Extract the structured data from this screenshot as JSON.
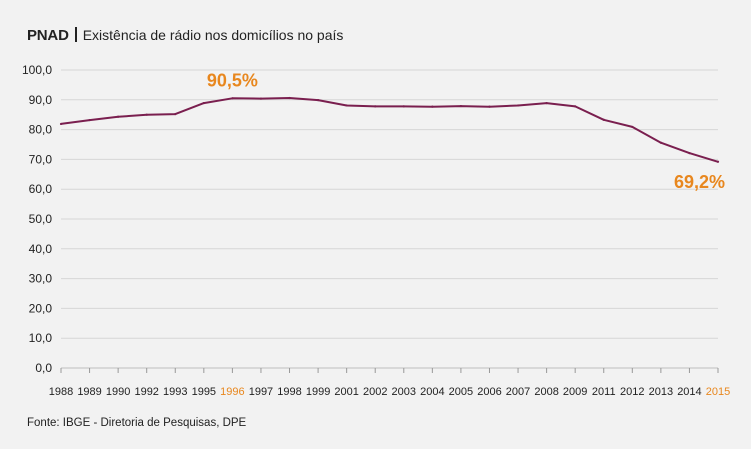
{
  "header": {
    "title": "PNAD",
    "subtitle": "Existência de rádio nos domicílios no país"
  },
  "footer": {
    "source": "Fonte: IBGE - Diretoria de Pesquisas, DPE"
  },
  "colors": {
    "line": "#7a1f4f",
    "highlight": "#e8871e",
    "grid": "#d6d6d6",
    "background": "#f2f2f2"
  },
  "chart_data": {
    "type": "line",
    "title": "Existência de rádio nos domicílios no país",
    "xlabel": "",
    "ylabel": "",
    "ylim": [
      0,
      100
    ],
    "y_ticks": [
      "0,0",
      "10,0",
      "20,0",
      "30,0",
      "40,0",
      "50,0",
      "60,0",
      "70,0",
      "80,0",
      "90,0",
      "100,0"
    ],
    "grid": true,
    "categories": [
      "1988",
      "1989",
      "1990",
      "1992",
      "1993",
      "1995",
      "1996",
      "1997",
      "1998",
      "1999",
      "2001",
      "2002",
      "2003",
      "2004",
      "2005",
      "2006",
      "2007",
      "2008",
      "2009",
      "2011",
      "2012",
      "2013",
      "2014",
      "2015"
    ],
    "highlighted_categories": [
      "1996",
      "2015"
    ],
    "series": [
      {
        "values": [
          81.9,
          83.2,
          84.3,
          85.0,
          85.2,
          88.9,
          90.5,
          90.4,
          90.6,
          89.9,
          88.1,
          87.8,
          87.8,
          87.7,
          87.9,
          87.7,
          88.1,
          88.9,
          87.8,
          83.3,
          80.9,
          75.6,
          72.1,
          69.2
        ]
      }
    ],
    "annotations": [
      {
        "category": "1996",
        "value": 90.5,
        "label": "90,5%"
      },
      {
        "category": "2015",
        "value": 69.2,
        "label": "69,2%"
      }
    ]
  }
}
